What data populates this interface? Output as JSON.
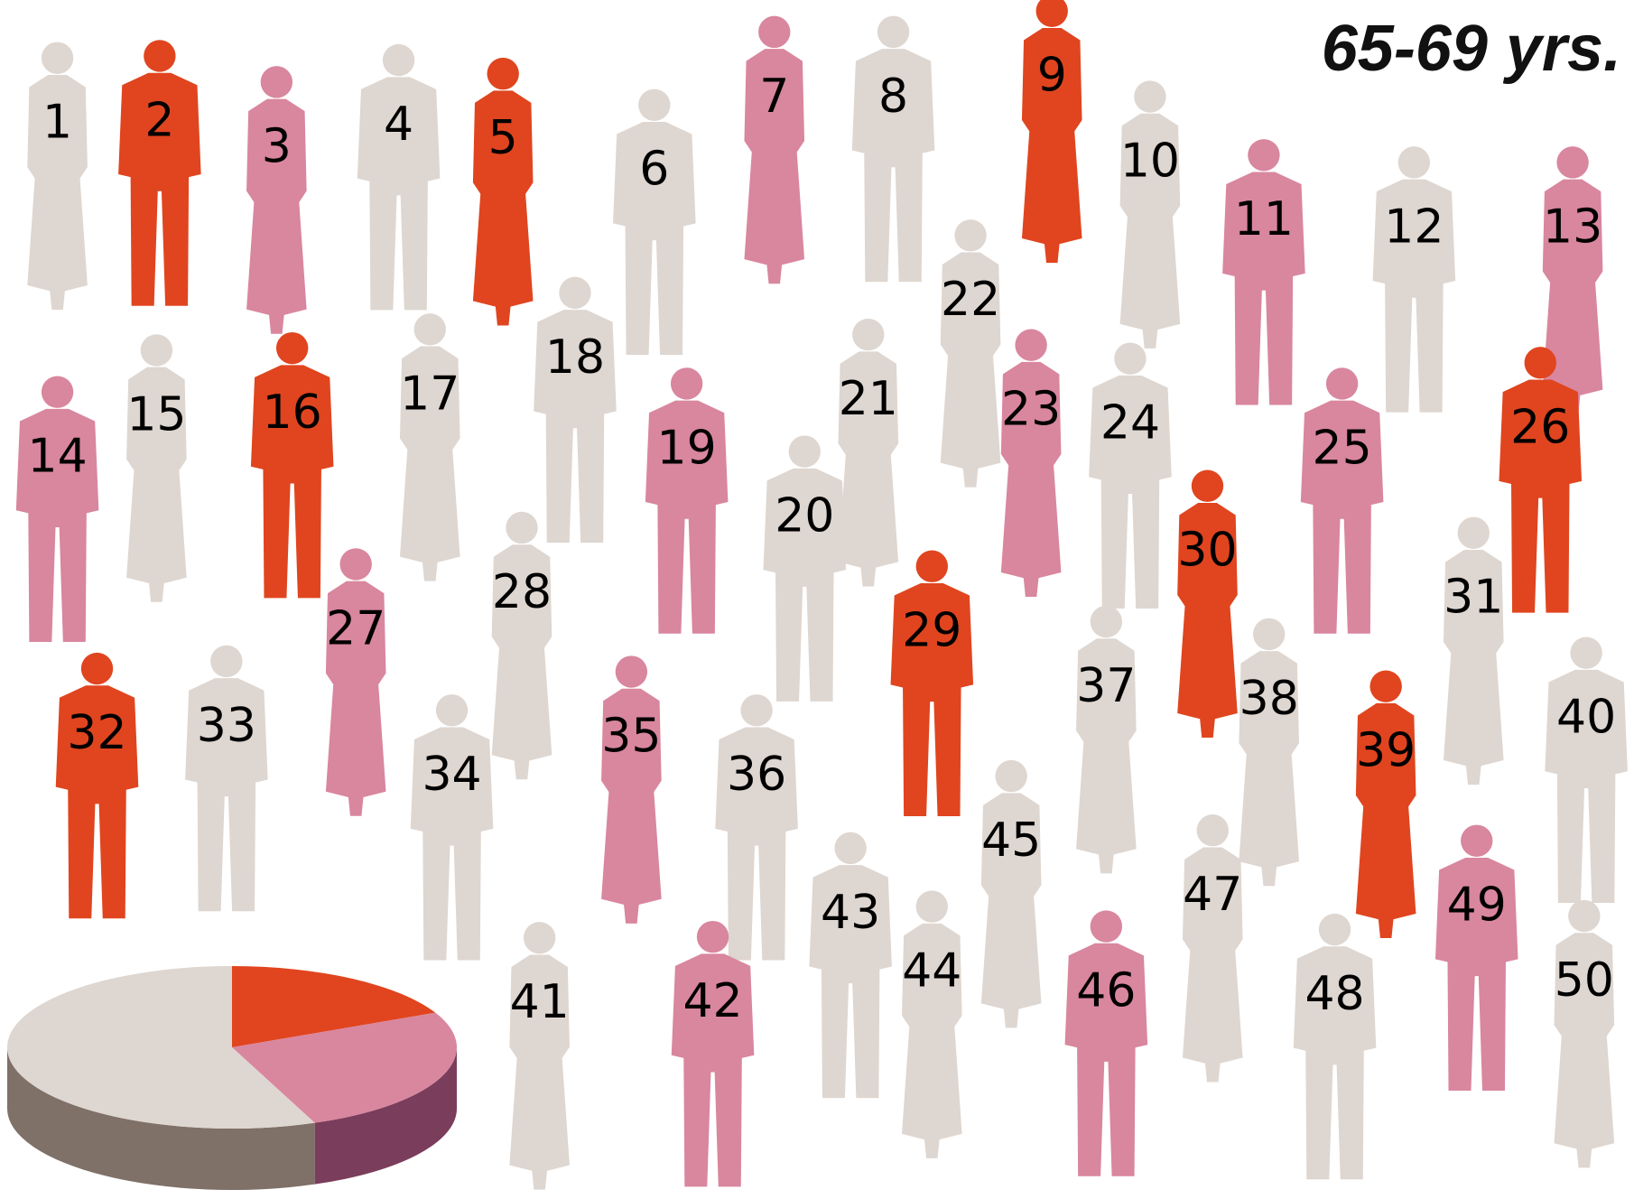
{
  "title": "65-69 yrs.",
  "people": [
    {
      "number": 1,
      "color": 2
    },
    {
      "number": 2,
      "color": 0
    },
    {
      "number": 3,
      "color": 1
    },
    {
      "number": 4,
      "color": 2
    },
    {
      "number": 5,
      "color": 0
    },
    {
      "number": 6,
      "color": 2
    },
    {
      "number": 7,
      "color": 1
    },
    {
      "number": 8,
      "color": 2
    },
    {
      "number": 9,
      "color": 0
    },
    {
      "number": 10,
      "color": 2
    },
    {
      "number": 11,
      "color": 1
    },
    {
      "number": 12,
      "color": 2
    },
    {
      "number": 13,
      "color": 1
    },
    {
      "number": 14,
      "color": 1
    },
    {
      "number": 15,
      "color": 2
    },
    {
      "number": 16,
      "color": 0
    },
    {
      "number": 17,
      "color": 2
    },
    {
      "number": 18,
      "color": 2
    },
    {
      "number": 19,
      "color": 1
    },
    {
      "number": 20,
      "color": 2
    },
    {
      "number": 21,
      "color": 2
    },
    {
      "number": 22,
      "color": 2
    },
    {
      "number": 23,
      "color": 1
    },
    {
      "number": 24,
      "color": 2
    },
    {
      "number": 25,
      "color": 1
    },
    {
      "number": 26,
      "color": 0
    },
    {
      "number": 27,
      "color": 1
    },
    {
      "number": 28,
      "color": 2
    },
    {
      "number": 29,
      "color": 0
    },
    {
      "number": 30,
      "color": 0
    },
    {
      "number": 31,
      "color": 2
    },
    {
      "number": 32,
      "color": 0
    },
    {
      "number": 33,
      "color": 2
    },
    {
      "number": 34,
      "color": 2
    },
    {
      "number": 35,
      "color": 1
    },
    {
      "number": 36,
      "color": 2
    },
    {
      "number": 37,
      "color": 2
    },
    {
      "number": 38,
      "color": 2
    },
    {
      "number": 39,
      "color": 0
    },
    {
      "number": 40,
      "color": 2
    },
    {
      "number": 41,
      "color": 2
    },
    {
      "number": 42,
      "color": 1
    },
    {
      "number": 43,
      "color": 2
    },
    {
      "number": 44,
      "color": 2
    },
    {
      "number": 45,
      "color": 2
    },
    {
      "number": 46,
      "color": 1
    },
    {
      "number": 47,
      "color": 2
    },
    {
      "number": 48,
      "color": 2
    },
    {
      "number": 49,
      "color": 1
    },
    {
      "number": 50,
      "color": 2
    }
  ],
  "chart_data": {
    "type": "pie",
    "values": [
      18,
      26,
      56
    ],
    "colors": [
      "#e0451f",
      "#d9869f",
      "#ded6d0"
    ],
    "side_colors": [
      "#8a2a12",
      "#7b3d5c",
      "#7f7068"
    ]
  }
}
